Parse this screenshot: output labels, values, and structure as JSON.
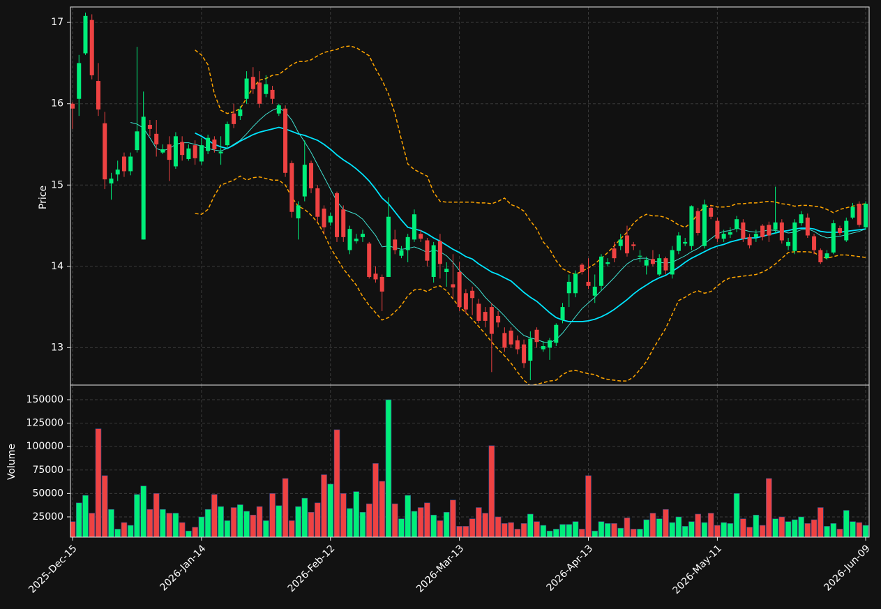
{
  "chart_data": {
    "type": "candlestick",
    "ylabel": "Price",
    "volume_label": "Volume",
    "categories": [
      "2025-Dec-15",
      null,
      null,
      null,
      null,
      null,
      null,
      null,
      null,
      null,
      null,
      null,
      null,
      null,
      null,
      null,
      null,
      null,
      null,
      null,
      "2026-Jan-14",
      null,
      null,
      null,
      null,
      null,
      null,
      null,
      null,
      null,
      null,
      null,
      null,
      null,
      null,
      null,
      null,
      null,
      null,
      null,
      "2026-Feb-12",
      null,
      null,
      null,
      null,
      null,
      null,
      null,
      null,
      null,
      null,
      null,
      null,
      null,
      null,
      null,
      null,
      null,
      null,
      null,
      "2026-Mar-13",
      null,
      null,
      null,
      null,
      null,
      null,
      null,
      null,
      null,
      null,
      null,
      null,
      null,
      null,
      null,
      null,
      null,
      null,
      null,
      "2026-Apr-13",
      null,
      null,
      null,
      null,
      null,
      null,
      null,
      null,
      null,
      null,
      null,
      null,
      null,
      null,
      null,
      null,
      null,
      null,
      null,
      "2026-May-11",
      null,
      null,
      null,
      null,
      null,
      null,
      null,
      null,
      null,
      null,
      null,
      null,
      null,
      null,
      null,
      null,
      null,
      null,
      null,
      null,
      null,
      null,
      "2026-Jun-09"
    ],
    "open": [
      16.0,
      16.06,
      16.62,
      17.03,
      16.28,
      15.76,
      15.02,
      15.13,
      15.35,
      15.17,
      15.43,
      14.33,
      15.74,
      15.63,
      15.4,
      15.5,
      15.23,
      15.53,
      15.32,
      15.49,
      15.29,
      15.42,
      15.56,
      15.39,
      15.49,
      15.88,
      15.85,
      16.06,
      16.33,
      16.26,
      16.12,
      16.17,
      15.88,
      15.94,
      15.27,
      14.59,
      14.86,
      15.27,
      14.96,
      14.71,
      14.54,
      14.9,
      14.7,
      14.2,
      14.31,
      14.36,
      14.28,
      13.91,
      13.87,
      13.87,
      14.33,
      14.13,
      14.2,
      14.33,
      14.4,
      14.32,
      13.87,
      14.31,
      13.93,
      13.78,
      13.93,
      13.67,
      13.7,
      13.54,
      13.44,
      13.5,
      13.39,
      13.18,
      13.21,
      13.09,
      13.04,
      12.84,
      13.22,
      12.98,
      13.0,
      13.06,
      13.34,
      13.67,
      13.67,
      14.02,
      13.81,
      13.64,
      13.76,
      14.03,
      14.22,
      14.25,
      14.38,
      14.27,
      14.12,
      14.01,
      14.09,
      13.9,
      14.1,
      13.9,
      14.19,
      14.28,
      14.25,
      14.68,
      14.25,
      14.72,
      14.56,
      14.34,
      14.39,
      14.46,
      14.54,
      14.36,
      14.36,
      14.5,
      14.51,
      14.45,
      14.54,
      14.25,
      14.19,
      14.53,
      14.6,
      14.37,
      14.2,
      14.1,
      14.17,
      14.47,
      14.32,
      14.6,
      14.77,
      14.48
    ],
    "high": [
      16.02,
      16.6,
      17.12,
      17.1,
      16.5,
      15.9,
      15.15,
      15.3,
      15.4,
      15.4,
      16.7,
      16.15,
      15.8,
      15.8,
      15.5,
      15.6,
      15.65,
      15.6,
      15.5,
      15.55,
      15.58,
      15.62,
      15.6,
      15.6,
      15.78,
      16.0,
      15.97,
      16.4,
      16.45,
      16.4,
      16.35,
      16.22,
      16.0,
      15.98,
      15.3,
      14.8,
      15.55,
      15.3,
      15.0,
      14.75,
      14.66,
      14.92,
      14.75,
      14.5,
      14.4,
      14.45,
      14.3,
      14.0,
      13.9,
      14.85,
      14.45,
      14.25,
      14.4,
      14.7,
      14.45,
      14.35,
      14.3,
      14.4,
      14.05,
      14.15,
      14.05,
      13.72,
      13.75,
      13.6,
      13.5,
      13.55,
      13.45,
      13.25,
      13.25,
      13.15,
      13.1,
      13.2,
      13.25,
      13.08,
      13.12,
      13.3,
      13.55,
      13.9,
      13.95,
      14.04,
      14.1,
      13.9,
      14.15,
      14.1,
      14.3,
      14.4,
      14.5,
      14.3,
      14.2,
      14.12,
      14.2,
      14.15,
      14.12,
      14.25,
      14.42,
      14.35,
      14.75,
      14.72,
      14.82,
      14.75,
      14.6,
      14.45,
      14.48,
      14.62,
      14.58,
      14.4,
      14.45,
      14.52,
      14.55,
      14.98,
      14.58,
      14.35,
      14.58,
      14.68,
      14.65,
      14.4,
      14.22,
      14.2,
      14.57,
      14.5,
      14.6,
      14.78,
      14.8,
      14.8
    ],
    "low": [
      15.69,
      15.85,
      16.6,
      16.3,
      15.85,
      14.95,
      14.82,
      15.05,
      15.1,
      15.12,
      15.4,
      14.33,
      15.6,
      15.35,
      15.38,
      15.05,
      15.2,
      15.3,
      15.3,
      15.25,
      15.25,
      15.38,
      15.4,
      15.25,
      15.45,
      15.7,
      15.8,
      16.0,
      16.12,
      15.95,
      16.08,
      16.0,
      15.85,
      15.1,
      14.6,
      14.33,
      14.8,
      14.9,
      14.55,
      14.4,
      14.5,
      14.3,
      14.3,
      14.15,
      14.28,
      14.3,
      13.85,
      13.8,
      13.45,
      13.87,
      14.15,
      14.1,
      14.05,
      14.3,
      14.3,
      14.0,
      13.8,
      13.85,
      13.75,
      13.6,
      13.45,
      13.42,
      13.4,
      13.3,
      13.25,
      12.7,
      13.25,
      12.95,
      13.0,
      12.92,
      12.75,
      12.6,
      13.0,
      12.95,
      12.85,
      13.02,
      13.3,
      13.5,
      13.62,
      13.9,
      13.72,
      13.55,
      13.7,
      14.0,
      14.05,
      14.2,
      14.12,
      14.2,
      14.05,
      13.9,
      14.0,
      13.88,
      13.9,
      13.85,
      14.15,
      14.25,
      14.2,
      14.38,
      14.22,
      14.58,
      14.3,
      14.3,
      14.35,
      14.42,
      14.3,
      14.22,
      14.3,
      14.32,
      14.3,
      14.4,
      14.28,
      14.2,
      14.15,
      14.5,
      14.35,
      14.15,
      14.03,
      14.08,
      14.15,
      14.38,
      14.3,
      14.58,
      14.48,
      14.45
    ],
    "close": [
      15.94,
      16.5,
      17.08,
      16.35,
      15.93,
      15.07,
      15.08,
      15.19,
      15.17,
      15.35,
      15.66,
      15.84,
      15.69,
      15.5,
      15.44,
      15.31,
      15.6,
      15.37,
      15.45,
      15.33,
      15.49,
      15.58,
      15.44,
      15.41,
      15.75,
      15.75,
      15.93,
      16.31,
      16.18,
      16.0,
      16.24,
      16.06,
      15.98,
      15.15,
      14.67,
      14.75,
      15.25,
      14.96,
      14.61,
      14.48,
      14.62,
      14.36,
      14.36,
      14.46,
      14.34,
      14.4,
      13.87,
      13.84,
      13.69,
      14.61,
      14.2,
      14.2,
      14.36,
      14.64,
      14.34,
      14.07,
      14.26,
      14.03,
      13.97,
      13.74,
      13.5,
      13.47,
      13.61,
      13.33,
      13.33,
      13.17,
      13.31,
      13.0,
      13.04,
      12.98,
      12.81,
      13.11,
      13.07,
      13.02,
      13.09,
      13.28,
      13.5,
      13.81,
      13.91,
      13.93,
      13.76,
      13.75,
      14.12,
      14.05,
      14.1,
      14.33,
      14.16,
      14.25,
      14.13,
      14.08,
      14.03,
      14.1,
      13.95,
      14.2,
      14.38,
      14.3,
      14.74,
      14.41,
      14.76,
      14.61,
      14.34,
      14.4,
      14.42,
      14.58,
      14.34,
      14.26,
      14.4,
      14.36,
      14.38,
      14.54,
      14.32,
      14.3,
      14.54,
      14.64,
      14.38,
      14.2,
      14.05,
      14.16,
      14.53,
      14.41,
      14.56,
      14.73,
      14.51,
      14.77
    ],
    "volume": [
      20000,
      40000,
      48000,
      29000,
      119000,
      69000,
      33000,
      12000,
      19000,
      16000,
      49000,
      58000,
      33000,
      50000,
      33000,
      29000,
      29000,
      19000,
      10000,
      14000,
      25000,
      33000,
      49000,
      36000,
      21000,
      35000,
      38000,
      31000,
      27000,
      36000,
      21000,
      50000,
      37000,
      66000,
      21000,
      36000,
      45000,
      30000,
      40000,
      70000,
      60000,
      118000,
      50000,
      34000,
      52000,
      30000,
      39000,
      82000,
      63000,
      150000,
      39000,
      23000,
      48000,
      31000,
      35000,
      40000,
      27000,
      21000,
      30000,
      43000,
      15000,
      15000,
      23000,
      35000,
      29000,
      101000,
      25000,
      18000,
      19000,
      12000,
      18000,
      28000,
      20000,
      16000,
      10000,
      12000,
      17000,
      17000,
      20000,
      12000,
      69000,
      10000,
      20000,
      18000,
      18000,
      13000,
      24000,
      12000,
      12000,
      22000,
      29000,
      23000,
      33000,
      19000,
      25000,
      15000,
      20000,
      28000,
      19000,
      29000,
      16000,
      19000,
      18000,
      50000,
      23000,
      14000,
      27000,
      16000,
      66000,
      23000,
      25000,
      20000,
      22000,
      25000,
      18000,
      22000,
      35000,
      15000,
      18000,
      12000,
      32000,
      20000,
      19000,
      16000
    ],
    "up_color": "#00ee7a",
    "down_color": "#ee4242",
    "ylim": [
      12.54,
      17.19
    ],
    "yticks": [
      13,
      14,
      15,
      16,
      17
    ],
    "volume_ylim": [
      3400,
      165600
    ],
    "volume_yticks": [
      25000,
      50000,
      75000,
      100000,
      125000,
      150000
    ],
    "grid": true,
    "overlays": [
      {
        "color": "#40e0d0",
        "width": 1,
        "dashed": false,
        "values": [
          null,
          null,
          null,
          null,
          null,
          null,
          null,
          null,
          null,
          15.77,
          15.75,
          15.7,
          15.58,
          15.45,
          15.42,
          15.45,
          15.5,
          15.52,
          15.52,
          15.5,
          15.48,
          15.45,
          15.43,
          15.42,
          15.45,
          15.5,
          15.55,
          15.63,
          15.72,
          15.8,
          15.87,
          15.92,
          15.95,
          15.9,
          15.8,
          15.65,
          15.53,
          15.4,
          15.25,
          15.1,
          14.95,
          14.8,
          14.7,
          14.67,
          14.64,
          14.58,
          14.48,
          14.38,
          14.24,
          14.25,
          14.23,
          14.21,
          14.22,
          14.24,
          14.21,
          14.17,
          14.2,
          14.18,
          14.13,
          14.05,
          13.95,
          13.87,
          13.8,
          13.72,
          13.62,
          13.54,
          13.47,
          13.39,
          13.3,
          13.22,
          13.15,
          13.12,
          13.1,
          13.07,
          13.06,
          13.1,
          13.18,
          13.28,
          13.38,
          13.48,
          13.55,
          13.62,
          13.7,
          13.78,
          13.86,
          13.95,
          14.03,
          14.08,
          14.1,
          14.1,
          14.07,
          14.05,
          14.04,
          14.05,
          14.09,
          14.13,
          14.18,
          14.22,
          14.28,
          14.34,
          14.4,
          14.43,
          14.44,
          14.47,
          14.45,
          14.43,
          14.42,
          14.43,
          14.45,
          14.44,
          14.43,
          14.41,
          14.42,
          14.45,
          14.46,
          14.43,
          14.38,
          14.35,
          14.36,
          14.37,
          14.39,
          14.41,
          14.43,
          14.46
        ]
      },
      {
        "color": "#00e5ff",
        "width": 1.8,
        "dashed": false,
        "values": [
          null,
          null,
          null,
          null,
          null,
          null,
          null,
          null,
          null,
          null,
          null,
          null,
          null,
          null,
          null,
          null,
          null,
          null,
          null,
          15.64,
          15.6,
          15.55,
          15.5,
          15.47,
          15.45,
          15.49,
          15.54,
          15.58,
          15.62,
          15.65,
          15.67,
          15.69,
          15.71,
          15.69,
          15.66,
          15.63,
          15.61,
          15.58,
          15.55,
          15.5,
          15.44,
          15.37,
          15.31,
          15.26,
          15.2,
          15.13,
          15.05,
          14.95,
          14.84,
          14.77,
          14.67,
          14.57,
          14.48,
          14.46,
          14.44,
          14.4,
          14.35,
          14.31,
          14.26,
          14.21,
          14.17,
          14.12,
          14.09,
          14.03,
          13.98,
          13.93,
          13.9,
          13.86,
          13.82,
          13.75,
          13.68,
          13.62,
          13.57,
          13.5,
          13.43,
          13.37,
          13.34,
          13.32,
          13.32,
          13.32,
          13.33,
          13.35,
          13.38,
          13.42,
          13.47,
          13.53,
          13.59,
          13.66,
          13.72,
          13.77,
          13.82,
          13.86,
          13.89,
          13.94,
          13.99,
          14.05,
          14.1,
          14.14,
          14.18,
          14.22,
          14.25,
          14.27,
          14.3,
          14.32,
          14.34,
          14.35,
          14.35,
          14.37,
          14.39,
          14.41,
          14.43,
          14.44,
          14.46,
          14.47,
          14.47,
          14.46,
          14.43,
          14.42,
          14.42,
          14.42,
          14.43,
          14.44,
          14.45,
          14.46
        ]
      },
      {
        "color": "#ffa500",
        "width": 1.5,
        "dashed": true,
        "values": [
          null,
          null,
          null,
          null,
          null,
          null,
          null,
          null,
          null,
          null,
          null,
          null,
          null,
          null,
          null,
          null,
          null,
          null,
          null,
          16.66,
          16.6,
          16.48,
          16.12,
          15.92,
          15.88,
          15.9,
          15.94,
          16.07,
          16.2,
          16.29,
          16.31,
          16.35,
          16.36,
          16.42,
          16.48,
          16.52,
          16.52,
          16.54,
          16.59,
          16.63,
          16.65,
          16.67,
          16.7,
          16.71,
          16.69,
          16.64,
          16.59,
          16.43,
          16.29,
          16.12,
          15.88,
          15.56,
          15.26,
          15.19,
          15.15,
          15.11,
          14.91,
          14.8,
          14.79,
          14.79,
          14.79,
          14.79,
          14.79,
          14.78,
          14.78,
          14.77,
          14.8,
          14.84,
          14.76,
          14.73,
          14.68,
          14.56,
          14.46,
          14.3,
          14.21,
          14.07,
          13.97,
          13.93,
          13.9,
          13.94,
          13.98,
          14.03,
          14.1,
          14.17,
          14.25,
          14.34,
          14.42,
          14.53,
          14.6,
          14.64,
          14.62,
          14.62,
          14.6,
          14.56,
          14.51,
          14.48,
          14.54,
          14.65,
          14.73,
          14.75,
          14.73,
          14.73,
          14.74,
          14.77,
          14.77,
          14.78,
          14.78,
          14.79,
          14.8,
          14.79,
          14.77,
          14.76,
          14.74,
          14.75,
          14.75,
          14.74,
          14.73,
          14.7,
          14.66,
          14.7,
          14.72,
          14.74,
          14.76,
          14.77
        ]
      },
      {
        "color": "#ffa500",
        "width": 1.5,
        "dashed": true,
        "values": [
          null,
          null,
          null,
          null,
          null,
          null,
          null,
          null,
          null,
          null,
          null,
          null,
          null,
          null,
          null,
          null,
          null,
          null,
          null,
          14.65,
          14.64,
          14.7,
          14.87,
          15.0,
          15.03,
          15.06,
          15.11,
          15.06,
          15.09,
          15.1,
          15.08,
          15.06,
          15.06,
          15.0,
          14.85,
          14.74,
          14.7,
          14.63,
          14.54,
          14.4,
          14.23,
          14.1,
          13.97,
          13.87,
          13.77,
          13.63,
          13.52,
          13.43,
          13.34,
          13.37,
          13.44,
          13.52,
          13.64,
          13.71,
          13.72,
          13.69,
          13.74,
          13.76,
          13.7,
          13.6,
          13.5,
          13.43,
          13.35,
          13.26,
          13.17,
          13.07,
          12.98,
          12.9,
          12.81,
          12.7,
          12.6,
          12.53,
          12.55,
          12.57,
          12.59,
          12.6,
          12.67,
          12.71,
          12.72,
          12.7,
          12.68,
          12.67,
          12.63,
          12.61,
          12.6,
          12.59,
          12.59,
          12.64,
          12.73,
          12.83,
          12.98,
          13.11,
          13.24,
          13.41,
          13.58,
          13.62,
          13.67,
          13.7,
          13.67,
          13.69,
          13.76,
          13.82,
          13.86,
          13.87,
          13.88,
          13.89,
          13.9,
          13.93,
          13.97,
          14.03,
          14.1,
          14.17,
          14.18,
          14.18,
          14.18,
          14.17,
          14.12,
          14.1,
          14.12,
          14.14,
          14.14,
          14.13,
          14.12,
          14.11
        ]
      }
    ]
  }
}
